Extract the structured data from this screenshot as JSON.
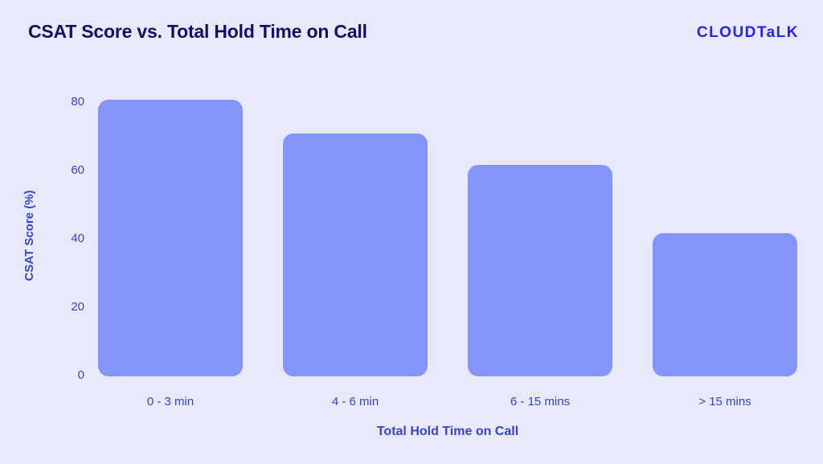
{
  "header": {
    "title": "CSAT Score vs. Total Hold Time on Call",
    "brand": "CLOUDTaLK"
  },
  "chart_data": {
    "type": "bar",
    "title": "CSAT Score vs. Total Hold Time on Call",
    "categories": [
      "0 - 3 min",
      "4 - 6 min",
      "6 - 15 mins",
      "> 15 mins"
    ],
    "values": [
      81,
      71,
      62,
      42
    ],
    "xlabel": "Total Hold Time on Call",
    "ylabel": "CSAT Score (%)",
    "yticks": [
      0,
      20,
      40,
      60,
      80
    ],
    "ylim": [
      0,
      85
    ],
    "grid": false,
    "legend": null,
    "colors": {
      "background": "#e8eafc",
      "bar": "#8494f8",
      "axis_text": "#3444d1",
      "title_text": "#0e1062",
      "brand": "#2525f1"
    }
  }
}
